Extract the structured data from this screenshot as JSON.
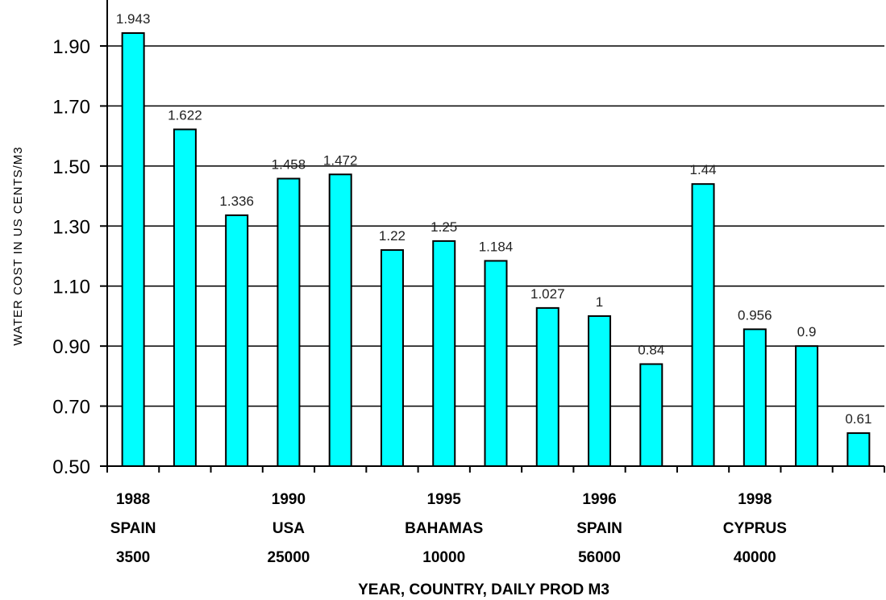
{
  "chart_data": {
    "type": "bar",
    "xlabel": "YEAR, COUNTRY, DAILY PROD M3",
    "ylabel": "WATER COST IN US CENTS/M3",
    "ylim": [
      0.5,
      1.9
    ],
    "yticks": [
      "0.50",
      "0.70",
      "0.90",
      "1.10",
      "1.30",
      "1.50",
      "1.70",
      "1.90"
    ],
    "grid": true,
    "bar_color": "#00ffff",
    "values": [
      1.943,
      1.622,
      1.336,
      1.458,
      1.472,
      1.22,
      1.25,
      1.184,
      1.027,
      1,
      0.84,
      1.44,
      0.956,
      0.9,
      0.61
    ],
    "value_labels": [
      "1.943",
      "1.622",
      "1.336",
      "1.458",
      "1.472",
      "1.22",
      "1.25",
      "1.184",
      "1.027",
      "1",
      "0.84",
      "1.44",
      "0.956",
      "0.9",
      "0.61"
    ],
    "groups": [
      {
        "year": "1988",
        "country": "SPAIN",
        "prod": "3500"
      },
      {
        "year": "1990",
        "country": "USA",
        "prod": "25000"
      },
      {
        "year": "1995",
        "country": "BAHAMAS",
        "prod": "10000"
      },
      {
        "year": "1996",
        "country": "SPAIN",
        "prod": "56000"
      },
      {
        "year": "1998",
        "country": "CYPRUS",
        "prod": "40000"
      }
    ]
  }
}
